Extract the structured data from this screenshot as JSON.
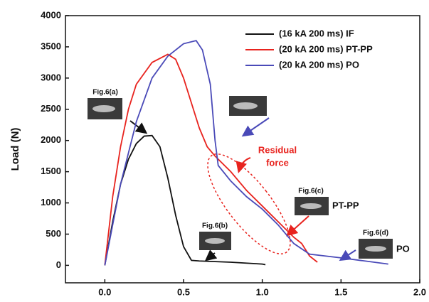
{
  "chart_data": {
    "type": "line",
    "y_label": "Load (N)",
    "xlim": [
      -0.25,
      2.0
    ],
    "ylim": [
      -280,
      4000
    ],
    "xticks": [
      {
        "value": 0,
        "label": "0.0"
      },
      0.5,
      {
        "value": 1,
        "label": "1.0"
      },
      1.5,
      {
        "value": 2,
        "label": "2.0"
      }
    ],
    "yticks": [
      0,
      500,
      1000,
      1500,
      2000,
      2500,
      3000,
      3500,
      4000
    ],
    "legend": "upper right",
    "series": [
      {
        "name": "(16 kA 200 ms) IF",
        "color": "#111111",
        "x": [
          0,
          0.05,
          0.1,
          0.15,
          0.2,
          0.25,
          0.3,
          0.35,
          0.4,
          0.45,
          0.5,
          0.55,
          0.6,
          0.8,
          1.0,
          1.02
        ],
        "values": [
          0,
          700,
          1300,
          1700,
          1950,
          2070,
          2080,
          1900,
          1400,
          800,
          300,
          80,
          70,
          50,
          20,
          10
        ]
      },
      {
        "name": "(20 kA 200 ms) PT-PP",
        "color": "#e8231e",
        "x": [
          0,
          0.05,
          0.1,
          0.15,
          0.2,
          0.3,
          0.4,
          0.45,
          0.5,
          0.55,
          0.6,
          0.65,
          0.7,
          0.8,
          0.9,
          1.0,
          1.1,
          1.2,
          1.25,
          1.3,
          1.35
        ],
        "values": [
          0,
          1100,
          1900,
          2500,
          2900,
          3250,
          3380,
          3300,
          3000,
          2600,
          2200,
          1900,
          1750,
          1500,
          1200,
          950,
          700,
          450,
          350,
          150,
          50
        ]
      },
      {
        "name": "(20 kA 200 ms) PO",
        "color": "#4a4ab8",
        "x": [
          0,
          0.1,
          0.2,
          0.3,
          0.4,
          0.5,
          0.58,
          0.62,
          0.67,
          0.7,
          0.72,
          0.8,
          0.9,
          1.0,
          1.1,
          1.2,
          1.3,
          1.5,
          1.8
        ],
        "values": [
          0,
          1300,
          2300,
          3000,
          3350,
          3550,
          3600,
          3450,
          2900,
          2000,
          1600,
          1350,
          1100,
          900,
          650,
          350,
          180,
          120,
          20
        ]
      }
    ],
    "annotations": {
      "fig_a": "Fig.6(a)",
      "fig_b": "Fig.6(b)",
      "fig_c": "Fig.6(c)",
      "fig_d": "Fig.6(d)",
      "residual": [
        "Residual",
        "force"
      ],
      "pt_pp": "PT-PP",
      "po": "PO"
    }
  }
}
